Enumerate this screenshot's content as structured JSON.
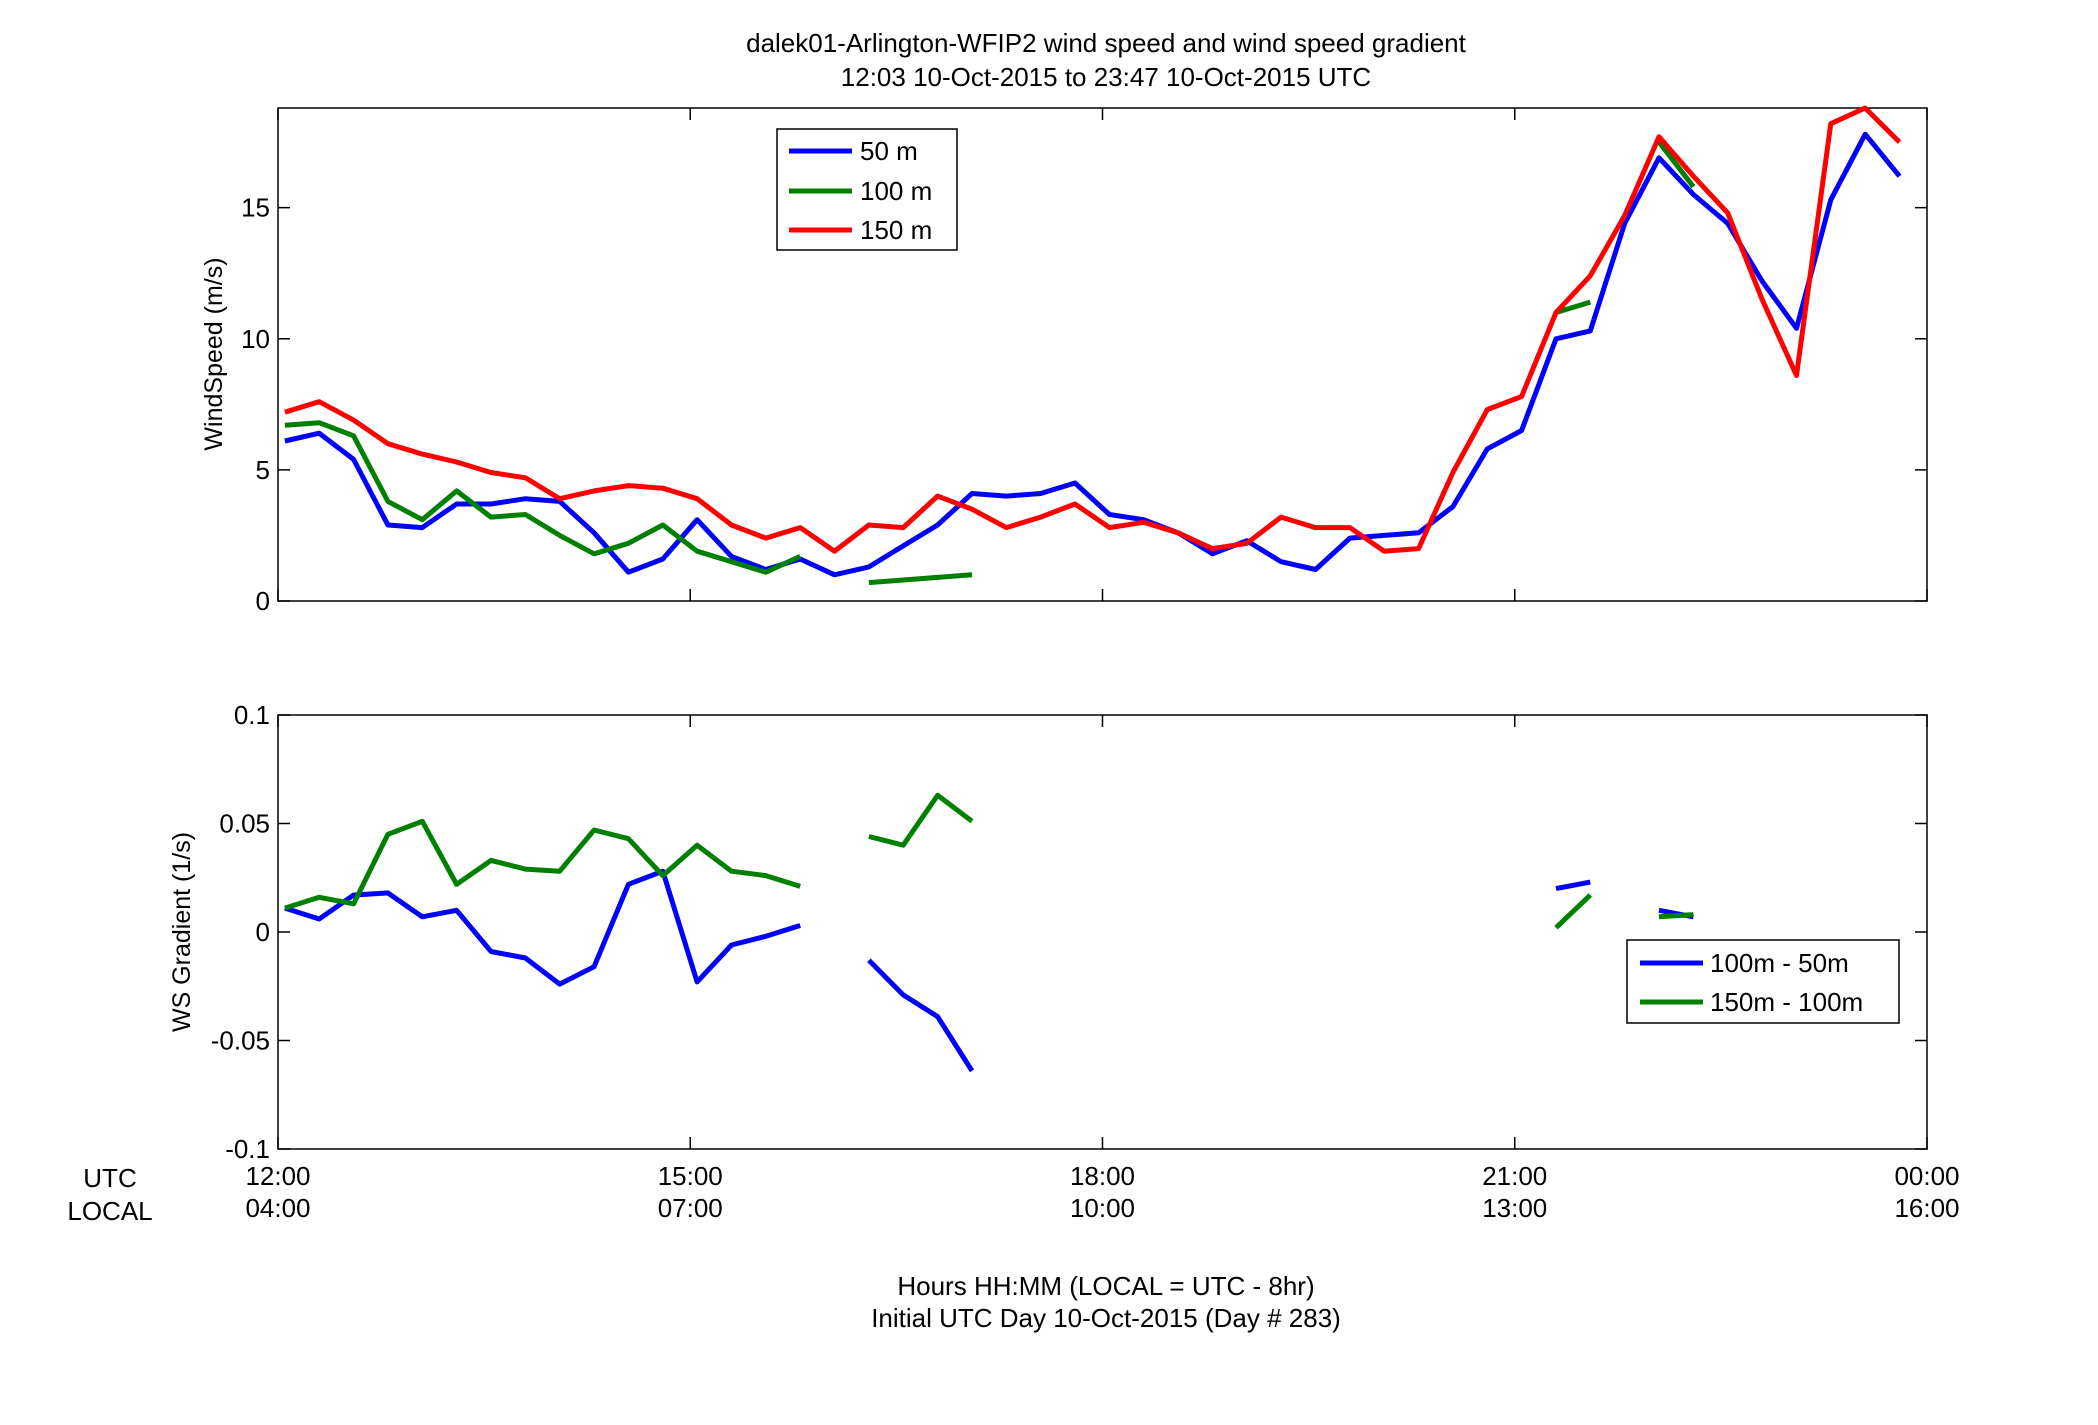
{
  "title": {
    "line1": "dalek01-Arlington-WFIP2  wind speed and wind speed gradient",
    "line2": "12:03 10-Oct-2015 to 23:47 10-Oct-2015  UTC"
  },
  "footer": {
    "line1": "Hours HH:MM  (LOCAL = UTC - 8hr)",
    "line2": "Initial UTC Day 10-Oct-2015 (Day # 283)"
  },
  "xaxis": {
    "utc_label": "UTC",
    "local_label": "LOCAL",
    "range_hours": [
      12,
      24
    ],
    "ticks": [
      {
        "hour": 12,
        "utc": "12:00",
        "local": "04:00"
      },
      {
        "hour": 15,
        "utc": "15:00",
        "local": "07:00"
      },
      {
        "hour": 18,
        "utc": "18:00",
        "local": "10:00"
      },
      {
        "hour": 21,
        "utc": "21:00",
        "local": "13:00"
      },
      {
        "hour": 24,
        "utc": "00:00",
        "local": "16:00"
      }
    ]
  },
  "chart_data": [
    {
      "type": "line",
      "ylabel": "WindSpeed (m/s)",
      "ylim": [
        0,
        18.8
      ],
      "yticks": [
        0,
        5,
        10,
        15
      ],
      "ytick_labels": [
        "0",
        "5",
        "10",
        "15"
      ],
      "grid": false,
      "legend": "top-left",
      "x_hours": [
        12.05,
        12.3,
        12.55,
        12.8,
        13.05,
        13.3,
        13.55,
        13.8,
        14.05,
        14.3,
        14.55,
        14.8,
        15.05,
        15.3,
        15.55,
        15.8,
        16.05,
        16.3,
        16.55,
        16.8,
        17.05,
        17.3,
        17.55,
        17.8,
        18.05,
        18.3,
        18.55,
        18.8,
        19.05,
        19.3,
        19.55,
        19.8,
        20.05,
        20.3,
        20.55,
        20.8,
        21.05,
        21.3,
        21.55,
        21.8,
        22.05,
        22.3,
        22.55,
        22.8,
        23.05,
        23.3,
        23.55,
        23.8
      ],
      "series": [
        {
          "name": "50 m",
          "color": "#0000ff",
          "values": [
            6.1,
            6.4,
            5.4,
            2.9,
            2.8,
            3.7,
            3.7,
            3.9,
            3.8,
            2.6,
            1.1,
            1.6,
            3.1,
            1.7,
            1.2,
            1.6,
            1.0,
            1.3,
            2.1,
            2.9,
            4.1,
            4.0,
            4.1,
            4.5,
            3.3,
            3.1,
            2.6,
            1.8,
            2.3,
            1.5,
            1.2,
            2.4,
            2.5,
            2.6,
            3.6,
            5.8,
            6.5,
            10.0,
            10.3,
            14.4,
            16.9,
            15.5,
            14.4,
            12.2,
            10.4,
            15.3,
            17.8,
            16.2
          ]
        },
        {
          "name": "100 m",
          "color": "#008000",
          "values": [
            6.7,
            6.8,
            6.3,
            3.8,
            3.1,
            4.2,
            3.2,
            3.3,
            2.5,
            1.8,
            2.2,
            2.9,
            1.9,
            1.5,
            1.1,
            1.7,
            null,
            0.7,
            0.8,
            0.9,
            1.0,
            null,
            null,
            null,
            null,
            null,
            null,
            null,
            null,
            null,
            null,
            null,
            null,
            null,
            null,
            null,
            null,
            11.0,
            11.4,
            null,
            17.5,
            15.8,
            null,
            null,
            null,
            null,
            null,
            null
          ]
        },
        {
          "name": "150 m",
          "color": "#ff0000",
          "values": [
            7.2,
            7.6,
            6.9,
            6.0,
            5.6,
            5.3,
            4.9,
            4.7,
            3.9,
            4.2,
            4.4,
            4.3,
            3.9,
            2.9,
            2.4,
            2.8,
            1.9,
            2.9,
            2.8,
            4.0,
            3.5,
            2.8,
            3.2,
            3.7,
            2.8,
            3.0,
            2.6,
            2.0,
            2.2,
            3.2,
            2.8,
            2.8,
            1.9,
            2.0,
            4.9,
            7.3,
            7.8,
            11.0,
            12.4,
            14.7,
            17.7,
            16.2,
            14.8,
            11.5,
            8.6,
            18.2,
            18.8,
            17.5
          ]
        }
      ]
    },
    {
      "type": "line",
      "ylabel": "WS Gradient (1/s)",
      "ylim": [
        -0.1,
        0.1
      ],
      "yticks": [
        -0.1,
        -0.05,
        0,
        0.05,
        0.1
      ],
      "ytick_labels": [
        "-0.1",
        "-0.05",
        "0",
        "0.05",
        "0.1"
      ],
      "grid": false,
      "legend": "bottom-right",
      "x_hours": [
        12.05,
        12.3,
        12.55,
        12.8,
        13.05,
        13.3,
        13.55,
        13.8,
        14.05,
        14.3,
        14.55,
        14.8,
        15.05,
        15.3,
        15.55,
        15.8,
        16.05,
        16.3,
        16.55,
        16.8,
        17.05,
        17.3,
        17.55,
        17.8,
        18.05,
        18.3,
        18.55,
        18.8,
        19.05,
        19.3,
        19.55,
        19.8,
        20.05,
        20.3,
        20.55,
        20.8,
        21.05,
        21.3,
        21.55,
        21.8,
        22.05,
        22.3,
        22.55,
        22.8,
        23.05,
        23.3,
        23.55,
        23.8
      ],
      "series": [
        {
          "name": "100m - 50m",
          "color": "#0000ff",
          "values": [
            0.011,
            0.006,
            0.017,
            0.018,
            0.007,
            0.01,
            -0.009,
            -0.012,
            -0.024,
            -0.016,
            0.022,
            0.028,
            -0.023,
            -0.006,
            -0.002,
            0.003,
            null,
            -0.013,
            -0.029,
            -0.039,
            -0.064,
            null,
            null,
            null,
            null,
            null,
            null,
            null,
            null,
            null,
            null,
            null,
            null,
            null,
            null,
            null,
            null,
            0.02,
            0.023,
            null,
            0.01,
            0.007,
            null,
            null,
            null,
            null,
            null,
            null
          ]
        },
        {
          "name": "150m - 100m",
          "color": "#008000",
          "values": [
            0.011,
            0.016,
            0.013,
            0.045,
            0.051,
            0.022,
            0.033,
            0.029,
            0.028,
            0.047,
            0.043,
            0.026,
            0.04,
            0.028,
            0.026,
            0.021,
            null,
            0.044,
            0.04,
            0.063,
            0.051,
            null,
            null,
            null,
            null,
            null,
            null,
            null,
            null,
            null,
            null,
            null,
            null,
            null,
            null,
            null,
            null,
            0.002,
            0.017,
            null,
            0.007,
            0.008,
            null,
            null,
            null,
            null,
            null,
            null
          ]
        }
      ]
    }
  ]
}
